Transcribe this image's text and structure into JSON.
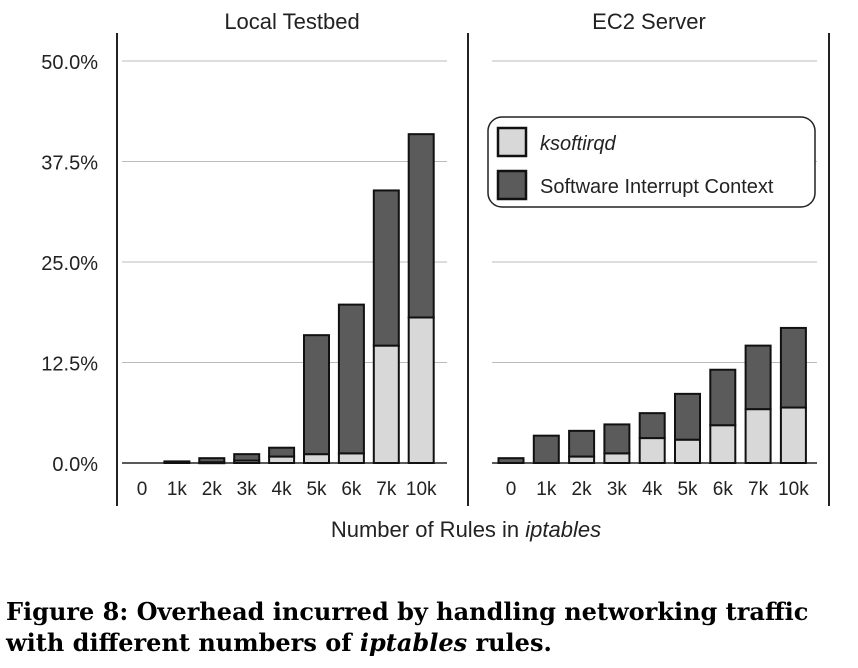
{
  "chart_data": {
    "type": "bar",
    "stacked": true,
    "xlabel_prefix": "Number of Rules in ",
    "xlabel_italic": "iptables",
    "y_ticks": [
      "0.0%",
      "12.5%",
      "25.0%",
      "37.5%",
      "50.0%"
    ],
    "ylim": [
      0,
      50
    ],
    "grid": true,
    "legend": {
      "placement": "right panel, top",
      "entries": [
        {
          "name": "ksoftirqd",
          "italic": true,
          "color": "#d8d8d8"
        },
        {
          "name": "Software Interrupt Context",
          "italic": false,
          "color": "#5b5b5b"
        }
      ]
    },
    "categories": [
      "0",
      "1k",
      "2k",
      "3k",
      "4k",
      "5k",
      "6k",
      "7k",
      "10k"
    ],
    "panels": [
      {
        "title": "Local Testbed",
        "series": [
          {
            "name": "ksoftirqd",
            "values": [
              0,
              0,
              0.1,
              0.3,
              0.8,
              1.1,
              1.2,
              14.6,
              18.1
            ]
          },
          {
            "name": "Software Interrupt Context",
            "values": [
              0,
              0.2,
              0.5,
              0.8,
              1.1,
              14.8,
              18.5,
              19.3,
              22.8
            ]
          }
        ]
      },
      {
        "title": "EC2 Server",
        "series": [
          {
            "name": "ksoftirqd",
            "values": [
              0,
              0,
              0.8,
              1.2,
              3.1,
              2.9,
              4.7,
              6.7,
              6.9
            ]
          },
          {
            "name": "Software Interrupt Context",
            "values": [
              0.6,
              3.4,
              3.2,
              3.6,
              3.1,
              5.7,
              6.9,
              7.9,
              9.9
            ]
          }
        ]
      }
    ]
  },
  "caption": {
    "label": "Figure 8: ",
    "text_before": "Overhead incurred by handling networking traffic with different numbers of ",
    "italic": "iptables",
    "text_after": " rules."
  }
}
